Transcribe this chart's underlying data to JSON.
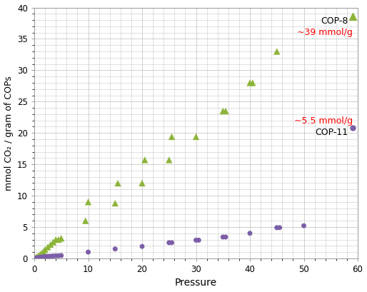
{
  "cop8_x": [
    0.15,
    0.3,
    0.5,
    0.7,
    1.0,
    1.3,
    1.7,
    2.0,
    2.5,
    3.0,
    3.5,
    4.0,
    4.5,
    5.0,
    9.5,
    10.0,
    15.0,
    15.5,
    20.0,
    20.5,
    25.0,
    25.5,
    30.0,
    35.0,
    35.5,
    40.0,
    40.5,
    45.0
  ],
  "cop8_y": [
    0.05,
    0.1,
    0.2,
    0.35,
    0.55,
    0.8,
    1.1,
    1.4,
    1.8,
    2.2,
    2.6,
    3.0,
    3.0,
    3.2,
    6.0,
    9.0,
    8.8,
    12.0,
    12.0,
    15.7,
    15.7,
    19.4,
    19.4,
    23.5,
    23.5,
    28.0,
    28.0,
    33.0
  ],
  "cop11_x": [
    0.15,
    0.3,
    0.5,
    0.7,
    1.0,
    1.3,
    1.7,
    2.0,
    2.5,
    3.0,
    3.5,
    4.0,
    4.5,
    5.0,
    10.0,
    15.0,
    20.0,
    25.0,
    25.5,
    30.0,
    30.5,
    35.0,
    35.5,
    40.0,
    45.0,
    45.5,
    50.0
  ],
  "cop11_y": [
    0.02,
    0.04,
    0.07,
    0.1,
    0.15,
    0.2,
    0.25,
    0.28,
    0.32,
    0.35,
    0.38,
    0.4,
    0.42,
    0.45,
    1.0,
    1.5,
    1.9,
    2.5,
    2.5,
    2.9,
    2.9,
    3.4,
    3.4,
    4.0,
    4.9,
    4.9,
    5.2
  ],
  "cop8_color": "#8db43a",
  "cop11_color": "#7b5ea7",
  "xlabel": "Pressure",
  "ylabel": "mmol CO₂ / gram of COPs",
  "xlim": [
    0,
    60
  ],
  "ylim": [
    0,
    40
  ],
  "xticks": [
    0,
    10,
    20,
    30,
    40,
    50,
    60
  ],
  "yticks": [
    0,
    5,
    10,
    15,
    20,
    25,
    30,
    35,
    40
  ],
  "legend_cop8": "COP-8",
  "legend_cop11": "COP-11",
  "annotation_cop8": "~39 mmol/g",
  "annotation_cop11": "~5.5 mmol/g",
  "annotation_cop8_color": "red",
  "annotation_cop11_color": "red",
  "background_color": "#ffffff",
  "grid_color": "#c8c8c8",
  "spine_color": "#999999"
}
